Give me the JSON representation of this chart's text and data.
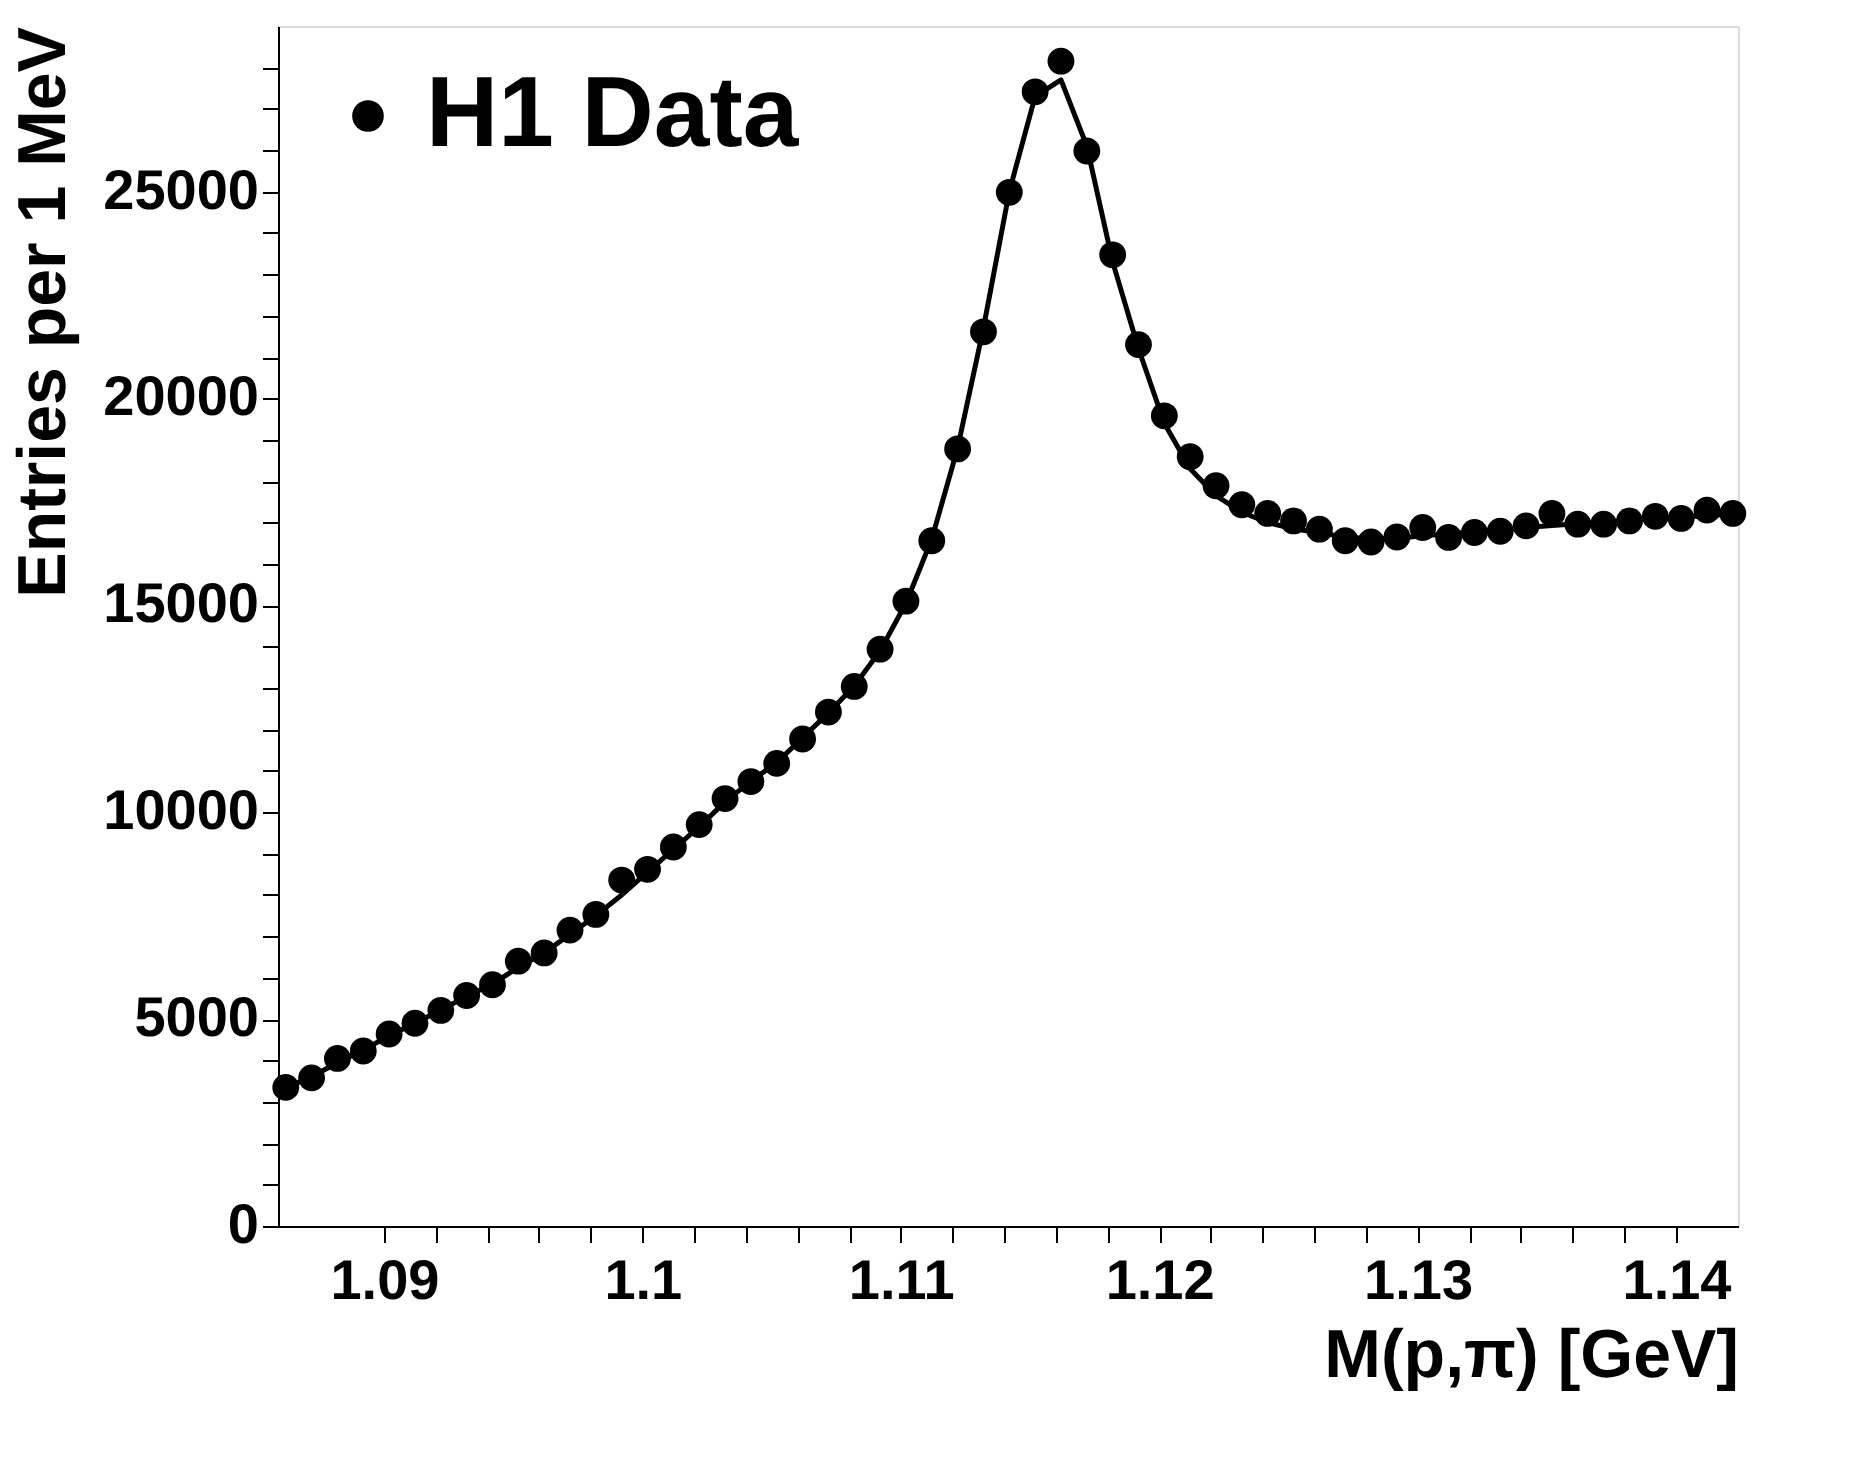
{
  "chart_data": {
    "type": "scatter",
    "xlabel": "M(p,π) [GeV]",
    "ylabel": "Entries per 1 MeV",
    "x": [
      1.0862,
      1.0872,
      1.0882,
      1.0892,
      1.0902,
      1.0912,
      1.0922,
      1.0932,
      1.0942,
      1.0952,
      1.0962,
      1.0972,
      1.0982,
      1.0992,
      1.1002,
      1.1012,
      1.1022,
      1.1032,
      1.1042,
      1.1052,
      1.1062,
      1.1072,
      1.1082,
      1.1092,
      1.1102,
      1.1112,
      1.1122,
      1.1132,
      1.1142,
      1.1152,
      1.1162,
      1.1172,
      1.1182,
      1.1192,
      1.1202,
      1.1212,
      1.1222,
      1.1232,
      1.1242,
      1.1252,
      1.1262,
      1.1272,
      1.1282,
      1.1292,
      1.1302,
      1.1312,
      1.1322,
      1.1332,
      1.1342,
      1.1352,
      1.1362,
      1.1372,
      1.1382,
      1.1392,
      1.1402,
      1.1412,
      1.1422
    ],
    "series": [
      {
        "name": "H1 Data",
        "marker": "circle",
        "color": "#000000",
        "values": [
          3350,
          3580,
          4050,
          4230,
          4640,
          4900,
          5210,
          5570,
          5830,
          6400,
          6600,
          7150,
          7530,
          8360,
          8620,
          9160,
          9700,
          10330,
          10740,
          11180,
          11770,
          12420,
          13040,
          13940,
          15100,
          16560,
          18780,
          21610,
          24980,
          27410,
          28150,
          25980,
          23470,
          21300,
          19580,
          18590,
          17890,
          17430,
          17220,
          17040,
          16840,
          16560,
          16530,
          16650,
          16880,
          16640,
          16760,
          16790,
          16920,
          17220,
          16960,
          16960,
          17040,
          17150,
          17100,
          17300,
          17220
        ]
      },
      {
        "type": "line",
        "color": "#000000",
        "values": [
          3350,
          3600,
          3950,
          4250,
          4600,
          4900,
          5220,
          5550,
          5850,
          6250,
          6600,
          7050,
          7500,
          8000,
          8550,
          9100,
          9650,
          10250,
          10750,
          11200,
          11800,
          12400,
          13050,
          13900,
          15050,
          16600,
          18800,
          21700,
          25000,
          27300,
          27700,
          26100,
          23300,
          21200,
          19400,
          18300,
          17650,
          17250,
          17000,
          16850,
          16750,
          16650,
          16600,
          16620,
          16680,
          16730,
          16780,
          16830,
          16880,
          16930,
          16970,
          17010,
          17050,
          17090,
          17130,
          17170,
          17200
        ]
      }
    ],
    "xlim": [
      1.0859,
      1.1424
    ],
    "ylim": [
      0,
      29000
    ],
    "xticks": [
      1.09,
      {
        "value": 1.092,
        "label": null
      },
      {
        "value": 1.094,
        "label": null
      },
      {
        "value": 1.096,
        "label": null
      },
      {
        "value": 1.098,
        "label": null
      },
      1.1,
      {
        "value": 1.102,
        "label": null
      },
      {
        "value": 1.104,
        "label": null
      },
      {
        "value": 1.106,
        "label": null
      },
      {
        "value": 1.108,
        "label": null
      },
      1.11,
      {
        "value": 1.112,
        "label": null
      },
      {
        "value": 1.114,
        "label": null
      },
      {
        "value": 1.116,
        "label": null
      },
      {
        "value": 1.118,
        "label": null
      },
      1.12,
      {
        "value": 1.122,
        "label": null
      },
      {
        "value": 1.124,
        "label": null
      },
      {
        "value": 1.126,
        "label": null
      },
      {
        "value": 1.128,
        "label": null
      },
      1.13,
      {
        "value": 1.132,
        "label": null
      },
      {
        "value": 1.134,
        "label": null
      },
      {
        "value": 1.136,
        "label": null
      },
      {
        "value": 1.138,
        "label": null
      },
      1.14
    ],
    "yticks": [
      0,
      {
        "value": 1000,
        "label": null
      },
      {
        "value": 2000,
        "label": null
      },
      {
        "value": 3000,
        "label": null
      },
      {
        "value": 4000,
        "label": null
      },
      5000,
      {
        "value": 6000,
        "label": null
      },
      {
        "value": 7000,
        "label": null
      },
      {
        "value": 8000,
        "label": null
      },
      {
        "value": 9000,
        "label": null
      },
      10000,
      {
        "value": 11000,
        "label": null
      },
      {
        "value": 12000,
        "label": null
      },
      {
        "value": 13000,
        "label": null
      },
      {
        "value": 14000,
        "label": null
      },
      15000,
      {
        "value": 16000,
        "label": null
      },
      {
        "value": 17000,
        "label": null
      },
      {
        "value": 18000,
        "label": null
      },
      {
        "value": 19000,
        "label": null
      },
      20000,
      {
        "value": 21000,
        "label": null
      },
      {
        "value": 22000,
        "label": null
      },
      {
        "value": 23000,
        "label": null
      },
      {
        "value": 24000,
        "label": null
      },
      25000,
      {
        "value": 26000,
        "label": null
      },
      {
        "value": 27000,
        "label": null
      },
      {
        "value": 28000,
        "label": null
      }
    ],
    "legend": "top left"
  }
}
